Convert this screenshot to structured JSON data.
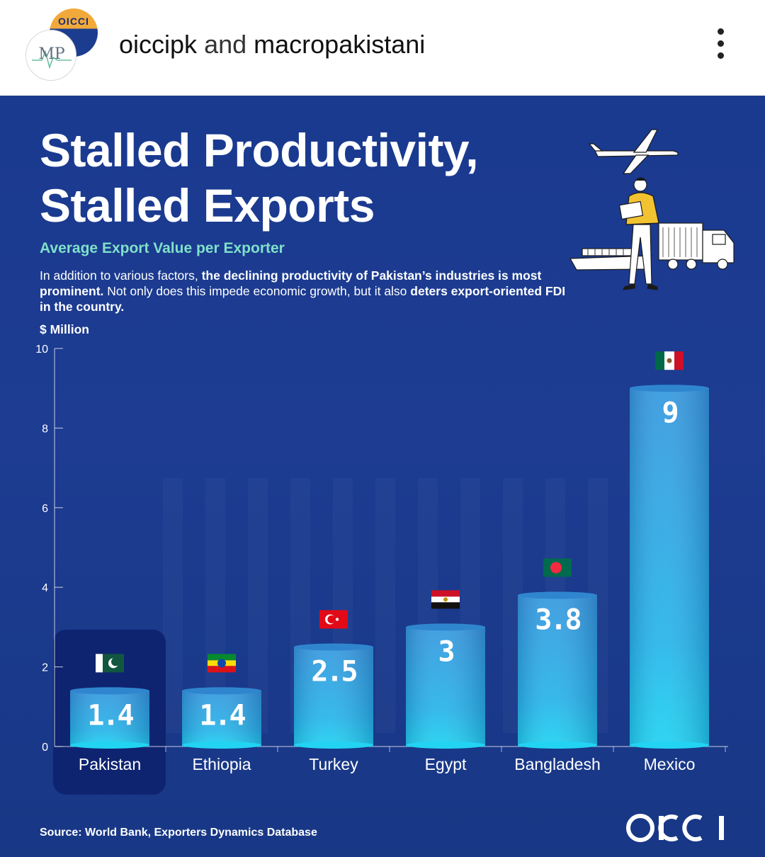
{
  "header": {
    "account_1": "oiccipk",
    "joiner": "and",
    "account_2": "macropakistani",
    "avatar_back_text": "OICCI",
    "avatar_front_text": "MP"
  },
  "poster": {
    "title_line1": "Stalled Productivity,",
    "title_line2": "Stalled Exports",
    "subtitle": "Average Export Value per Exporter",
    "description": {
      "p1": "In addition to various factors, ",
      "b1": "the declining productivity of Pakistan’s industries is most prominent.",
      "p2": " Not only does this impede economic growth, but it also ",
      "b2": "deters export-oriented FDI in the country."
    },
    "unit": "$ Million",
    "source": "Source: World Bank, Exporters Dynamics Database",
    "brand": "OICCI"
  },
  "colors": {
    "background": "#1b3a8c",
    "bar_top": "#3a9fe0",
    "bar_bottom": "#24d0f0",
    "subtitle": "#7fe0c9",
    "highlight": "#0f2470"
  },
  "chart_data": {
    "type": "bar",
    "categories": [
      "Pakistan",
      "Ethiopia",
      "Turkey",
      "Egypt",
      "Bangladesh",
      "Mexico"
    ],
    "values": [
      1.4,
      1.4,
      2.5,
      3,
      3.8,
      9
    ],
    "value_labels": [
      "1.4",
      "1.4",
      "2.5",
      "3",
      "3.8",
      "9"
    ],
    "flags": [
      "flag-pakistan",
      "flag-ethiopia",
      "flag-turkey",
      "flag-egypt",
      "flag-bangladesh",
      "flag-mexico"
    ],
    "highlighted": "Pakistan",
    "ylabel": "$ Million",
    "ylim": [
      0,
      10
    ],
    "yticks": [
      0,
      2,
      4,
      6,
      8,
      10
    ],
    "grid": false
  }
}
